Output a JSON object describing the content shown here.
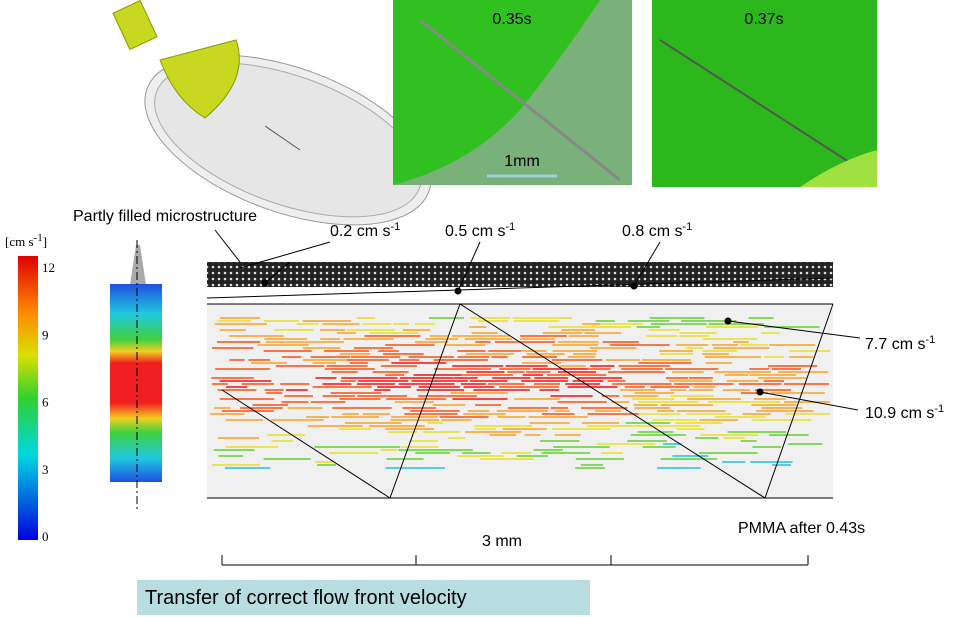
{
  "images": {
    "frame_a": {
      "label": "0.35s",
      "scale": "1mm"
    },
    "frame_b": {
      "label": "0.37s"
    }
  },
  "microstructure_label": "Partly filled microstructure",
  "colorbar": {
    "unit": "[cm s",
    "unit_sup": "-1",
    "unit_end": "]",
    "ticks": [
      12,
      9,
      6,
      3,
      0
    ]
  },
  "velocities": [
    {
      "text": "0.2 cm s",
      "sup": "-1"
    },
    {
      "text": "0.5 cm s",
      "sup": "-1"
    },
    {
      "text": "0.8 cm s",
      "sup": "-1"
    },
    {
      "text": "7.7 cm s",
      "sup": "-1"
    },
    {
      "text": "10.9 cm s",
      "sup": "-1"
    }
  ],
  "scale_label": "3 mm",
  "caption": "PMMA after 0.43s",
  "footer": "Transfer of correct flow front velocity"
}
